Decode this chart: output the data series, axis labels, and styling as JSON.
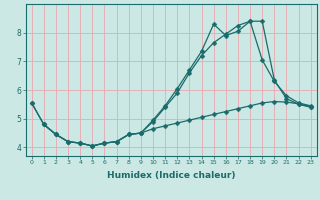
{
  "xlabel": "Humidex (Indice chaleur)",
  "xlim": [
    -0.5,
    23.5
  ],
  "ylim": [
    3.7,
    9.0
  ],
  "xticks": [
    0,
    1,
    2,
    3,
    4,
    5,
    6,
    7,
    8,
    9,
    10,
    11,
    12,
    13,
    14,
    15,
    16,
    17,
    18,
    19,
    20,
    21,
    22,
    23
  ],
  "yticks": [
    4,
    5,
    6,
    7,
    8
  ],
  "background_color": "#cce8e4",
  "grid_color": "#e8a8b0",
  "line_color": "#1a6b6b",
  "line1_x": [
    0,
    1,
    2,
    3,
    4,
    5,
    6,
    7,
    8,
    9,
    10,
    11,
    12,
    13,
    14,
    15,
    16,
    17,
    18,
    19,
    20,
    21,
    22,
    23
  ],
  "line1_y": [
    5.55,
    4.8,
    4.45,
    4.2,
    4.15,
    4.05,
    4.15,
    4.2,
    4.45,
    4.5,
    4.95,
    5.45,
    6.05,
    6.7,
    7.35,
    8.3,
    7.9,
    8.05,
    8.4,
    7.05,
    6.3,
    5.8,
    5.55,
    5.45
  ],
  "line2_x": [
    0,
    1,
    2,
    3,
    4,
    5,
    6,
    7,
    8,
    9,
    10,
    11,
    12,
    13,
    14,
    15,
    16,
    17,
    18,
    19,
    20,
    21,
    22,
    23
  ],
  "line2_y": [
    5.55,
    4.8,
    4.45,
    4.2,
    4.15,
    4.05,
    4.15,
    4.2,
    4.45,
    4.5,
    4.9,
    5.4,
    5.9,
    6.6,
    7.2,
    7.65,
    7.95,
    8.25,
    8.4,
    8.4,
    6.35,
    5.7,
    5.5,
    5.4
  ],
  "line3_x": [
    1,
    2,
    3,
    4,
    5,
    6,
    7,
    8,
    9,
    10,
    11,
    12,
    13,
    14,
    15,
    16,
    17,
    18,
    19,
    20,
    21,
    22,
    23
  ],
  "line3_y": [
    4.8,
    4.45,
    4.2,
    4.15,
    4.05,
    4.15,
    4.2,
    4.45,
    4.5,
    4.65,
    4.75,
    4.85,
    4.95,
    5.05,
    5.15,
    5.25,
    5.35,
    5.45,
    5.55,
    5.6,
    5.58,
    5.52,
    5.42
  ]
}
